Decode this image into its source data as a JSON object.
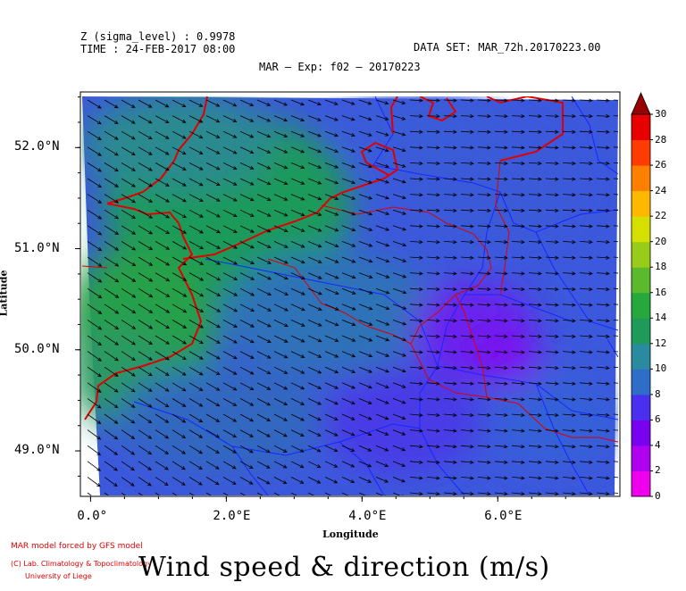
{
  "header": {
    "z_level": "Z (sigma_level) : 0.9978",
    "time": "TIME : 24-FEB-2017 08:00",
    "dataset": "DATA SET: MAR_72h.20170223.00",
    "experiment": "MAR – Exp: f02 – 20170223"
  },
  "axes": {
    "xlabel": "Longitude",
    "ylabel": "Latitude",
    "x_ticks": [
      "0.0°",
      "2.0°E",
      "4.0°E",
      "6.0°E"
    ],
    "x_tick_values": [
      0,
      2,
      4,
      6
    ],
    "y_ticks": [
      "52.0°N",
      "51.0°N",
      "50.0°N",
      "49.0°N"
    ],
    "y_tick_values": [
      52,
      51,
      50,
      49
    ],
    "lon_range": [
      -0.15,
      7.8
    ],
    "lat_range": [
      48.55,
      52.55
    ]
  },
  "colorbar": {
    "labels": [
      "0",
      "2",
      "4",
      "6",
      "8",
      "10",
      "12",
      "14",
      "16",
      "18",
      "20",
      "22",
      "24",
      "26",
      "28",
      "30"
    ],
    "colors": [
      "#ee00ee",
      "#b000f0",
      "#7a00f0",
      "#4a30ee",
      "#3552e8",
      "#2f6ec8",
      "#2a8aa0",
      "#1e9a5a",
      "#27a83c",
      "#5cb82c",
      "#98cc18",
      "#d6e000",
      "#ffe800",
      "#ffb800",
      "#ff8000",
      "#ff3c00",
      "#e80000",
      "#9a0000"
    ]
  },
  "wind": {
    "u_direction": "east-southeast",
    "arrow_color": "#000000"
  },
  "colors": {
    "border": "#e00000",
    "rivers": "#1428ff"
  },
  "credits": {
    "line1": "MAR model forced by GFS model",
    "line2": "(C) Lab. Climatology & Topoclimatology",
    "line3": "University of Liege"
  },
  "title": "Wind speed & direction (m/s)"
}
